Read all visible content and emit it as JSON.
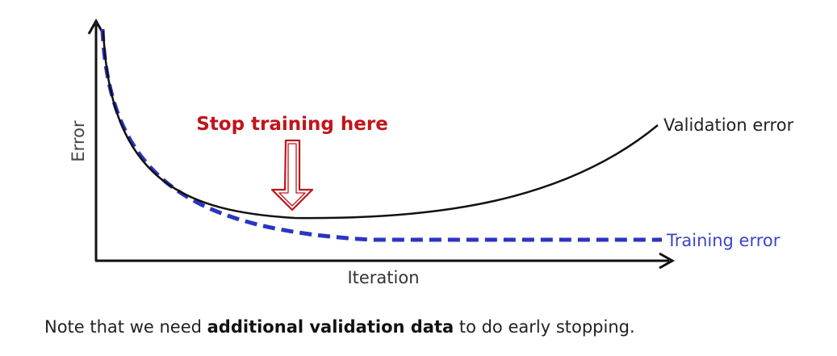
{
  "diagram": {
    "y_axis_label": "Error",
    "x_axis_label": "Iteration",
    "validation_label": "Validation error",
    "training_label": "Training error",
    "stop_label": "Stop training here"
  },
  "note": {
    "prefix": "Note that we need ",
    "bold": "additional validation data",
    "suffix": " to do early stopping."
  },
  "colors": {
    "axis": "#111111",
    "validation_curve": "#111111",
    "training_curve": "#2b35c2",
    "training_label": "#3b47c4",
    "stop_label": "#c0151b",
    "arrow_outline": "#c0151b"
  }
}
